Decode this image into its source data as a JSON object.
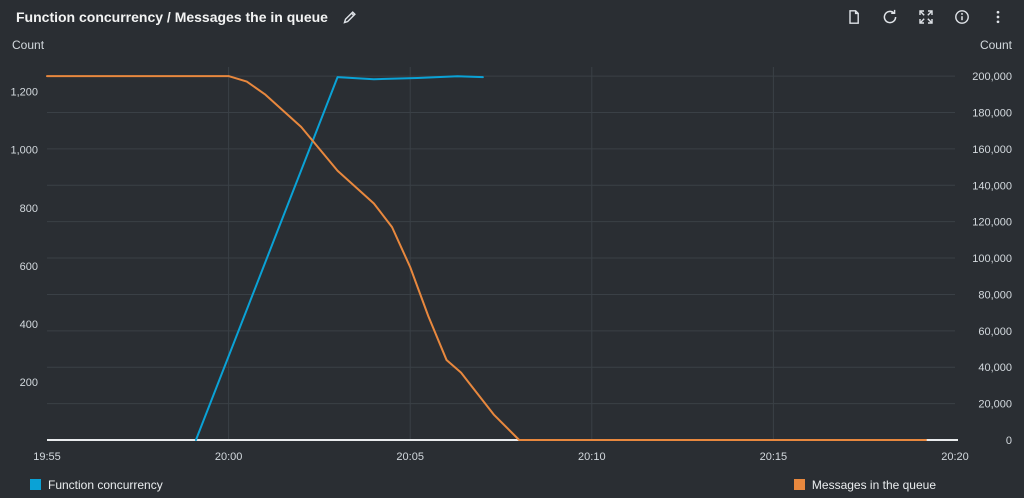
{
  "header": {
    "title": "Function concurrency / Messages the in queue",
    "actions": [
      {
        "icon": "copy-icon"
      },
      {
        "icon": "refresh-icon"
      },
      {
        "icon": "expand-icon"
      },
      {
        "icon": "info-icon"
      },
      {
        "icon": "menu-dots-icon"
      }
    ]
  },
  "colors": {
    "background": "#2a2e33",
    "grid": "#3a4046",
    "axis_line": "#e9ebed",
    "tick_text": "#d3d9de",
    "blue_series": "#0aa2d6",
    "orange_series": "#e8883e"
  },
  "legend": {
    "items": [
      {
        "label": "Function concurrency",
        "color": "#0aa2d6"
      },
      {
        "label": "Messages in the queue",
        "color": "#e8883e"
      }
    ]
  },
  "chart_data": {
    "type": "line",
    "title": "Function concurrency / Messages the in queue",
    "grid": true,
    "legend_position": "bottom",
    "x_ticks": [
      "19:55",
      "20:00",
      "20:05",
      "20:10",
      "20:15",
      "20:20"
    ],
    "x_tick_minutes": [
      0,
      5,
      10,
      15,
      20,
      25
    ],
    "x_range_minutes": [
      0,
      25
    ],
    "y_left": {
      "label": "Count",
      "tick_values": [
        200,
        400,
        600,
        800,
        1000,
        1200
      ],
      "tick_labels": [
        "200",
        "400",
        "600",
        "800",
        "1,000",
        "1,200"
      ],
      "range": [
        0,
        1285
      ]
    },
    "y_right": {
      "label": "Count",
      "tick_values": [
        0,
        20000,
        40000,
        60000,
        80000,
        100000,
        120000,
        140000,
        160000,
        180000,
        200000
      ],
      "tick_labels": [
        "0",
        "20,000",
        "40,000",
        "60,000",
        "80,000",
        "100,000",
        "120,000",
        "140,000",
        "160,000",
        "180,000",
        "200,000"
      ],
      "range": [
        0,
        205000
      ]
    },
    "series": [
      {
        "name": "Function concurrency",
        "axis": "left",
        "color": "#0aa2d6",
        "points": [
          [
            4.1,
            0
          ],
          [
            8.0,
            1250
          ],
          [
            9.0,
            1243
          ],
          [
            10.2,
            1247
          ],
          [
            11.3,
            1253
          ],
          [
            12.0,
            1250
          ]
        ]
      },
      {
        "name": "Messages in the queue",
        "axis": "right",
        "color": "#e8883e",
        "points": [
          [
            0,
            200000
          ],
          [
            5.0,
            200000
          ],
          [
            5.5,
            197000
          ],
          [
            6.0,
            190000
          ],
          [
            7.0,
            172000
          ],
          [
            8.0,
            148000
          ],
          [
            9.0,
            130000
          ],
          [
            9.5,
            117000
          ],
          [
            10.0,
            95000
          ],
          [
            10.5,
            68000
          ],
          [
            11.0,
            44000
          ],
          [
            11.4,
            37000
          ],
          [
            12.3,
            14000
          ],
          [
            13.0,
            0
          ],
          [
            24.2,
            0
          ]
        ]
      }
    ]
  }
}
